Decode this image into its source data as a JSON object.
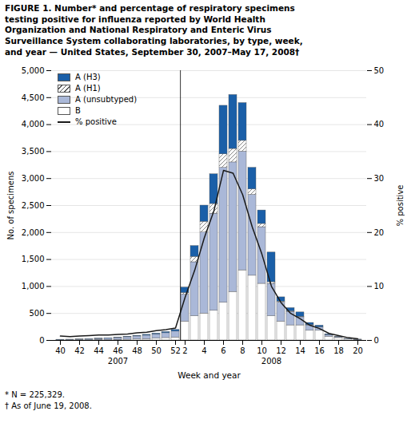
{
  "chart_data": {
    "type": "bar",
    "stacked": true,
    "title": "FIGURE 1. Number* and percentage of respiratory specimens\ntesting positive for influenza reported by World Health\nOrganization and National Respiratory and Enteric Virus\nSurveillance System collaborating laboratories, by type, week,\nand year — United States, September 30, 2007–May 17, 2008†",
    "xlabel": "Week and year",
    "ylabel": "No. of specimens",
    "y2label": "% positive",
    "categories": [
      "40",
      null,
      "42",
      null,
      "44",
      null,
      "46",
      null,
      "48",
      null,
      "50",
      null,
      "52",
      "2",
      null,
      "4",
      null,
      "6",
      null,
      "8",
      null,
      "10",
      null,
      "12",
      null,
      "14",
      null,
      "16",
      null,
      "18",
      null,
      "20"
    ],
    "series": [
      {
        "name": "B",
        "color": "#ffffff",
        "values": [
          3,
          4,
          4,
          5,
          8,
          8,
          10,
          15,
          20,
          25,
          35,
          45,
          55,
          350,
          450,
          500,
          550,
          700,
          900,
          1300,
          1200,
          1050,
          450,
          350,
          280,
          280,
          180,
          180,
          70,
          45,
          18,
          8
        ]
      },
      {
        "name": "A (unsubtyped)",
        "color": "#aab8d8",
        "values": [
          5,
          8,
          10,
          15,
          20,
          25,
          35,
          45,
          55,
          65,
          75,
          90,
          110,
          500,
          1000,
          1500,
          1800,
          2500,
          2400,
          2200,
          1500,
          1050,
          600,
          350,
          250,
          150,
          100,
          60,
          30,
          15,
          8,
          5
        ]
      },
      {
        "name": "A (H1)",
        "color": "#ffffff",
        "line_style": "hatched",
        "values": [
          0,
          0,
          0,
          0,
          0,
          0,
          0,
          0,
          0,
          0,
          0,
          0,
          0,
          30,
          100,
          200,
          180,
          250,
          250,
          200,
          100,
          60,
          30,
          20,
          10,
          10,
          5,
          5,
          0,
          0,
          0,
          0
        ]
      },
      {
        "name": "A (H3)",
        "color": "#1a5fa8",
        "values": [
          5,
          3,
          4,
          5,
          6,
          7,
          8,
          10,
          12,
          15,
          18,
          22,
          30,
          100,
          200,
          300,
          550,
          900,
          1000,
          700,
          400,
          250,
          550,
          80,
          60,
          80,
          40,
          30,
          15,
          8,
          4,
          3
        ]
      },
      {
        "name": "% positive",
        "type": "line",
        "axis": "y2",
        "color": "#1a1a1a",
        "values": [
          0.8,
          0.7,
          0.8,
          0.9,
          1.0,
          1.0,
          1.1,
          1.2,
          1.4,
          1.5,
          1.8,
          2.0,
          2.3,
          8.0,
          13.0,
          19.0,
          24.0,
          31.5,
          31.0,
          27.0,
          21.0,
          16.0,
          10.0,
          7.0,
          5.0,
          4.0,
          2.8,
          2.2,
          1.3,
          0.9,
          0.5,
          0.3
        ]
      }
    ],
    "ylim": [
      0,
      5000
    ],
    "yticks": [
      0,
      500,
      {
        "value": 1000,
        "label": "1,000"
      },
      {
        "value": 1500,
        "label": "1,500"
      },
      {
        "value": 2000,
        "label": "2,000"
      },
      {
        "value": 2500,
        "label": "2,500"
      },
      {
        "value": 3000,
        "label": "3,000"
      },
      {
        "value": 3500,
        "label": "3,500"
      },
      {
        "value": 4000,
        "label": "4,000"
      },
      {
        "value": 4500,
        "label": "4,500"
      },
      {
        "value": 5000,
        "label": "5,000"
      }
    ],
    "y2lim": [
      0,
      50
    ],
    "y2ticks": [
      0,
      10,
      20,
      30,
      40,
      50
    ],
    "grid": true,
    "legend": "upper left",
    "annotations": [
      "2007",
      "2008"
    ],
    "footnotes": [
      "* N = 225,329.",
      "† As of June 19, 2008."
    ]
  }
}
